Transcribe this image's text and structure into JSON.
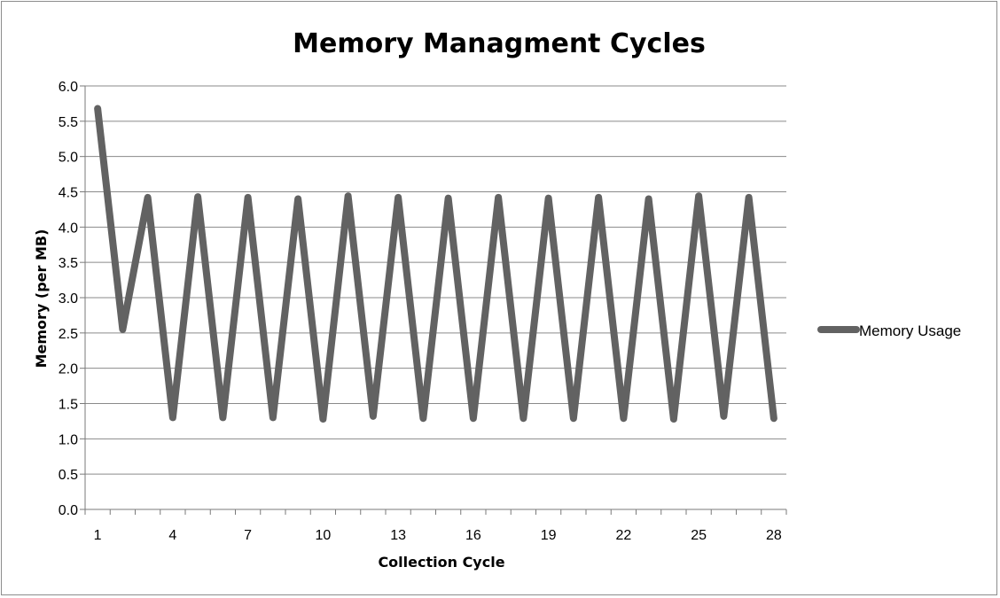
{
  "chart_data": {
    "type": "line",
    "title": "Memory Managment Cycles",
    "xlabel": "Collection Cycle",
    "ylabel": "Memory (per MB)",
    "ylim": [
      0,
      6
    ],
    "y_ticks": [
      "0.0",
      "0.5",
      "1.0",
      "1.5",
      "2.0",
      "2.5",
      "3.0",
      "3.5",
      "4.0",
      "4.5",
      "5.0",
      "5.5",
      "6.0"
    ],
    "x_ticks": [
      "1",
      "4",
      "7",
      "10",
      "13",
      "16",
      "19",
      "22",
      "25",
      "28"
    ],
    "x": [
      1,
      2,
      3,
      4,
      5,
      6,
      7,
      8,
      9,
      10,
      11,
      12,
      13,
      14,
      15,
      16,
      17,
      18,
      19,
      20,
      21,
      22,
      23,
      24,
      25,
      26,
      27,
      28
    ],
    "grid": true,
    "legend_position": "right",
    "line_color": "#626262",
    "series": [
      {
        "name": "Memory Usage",
        "values": [
          5.68,
          2.55,
          4.42,
          1.3,
          4.43,
          1.3,
          4.42,
          1.3,
          4.4,
          1.28,
          4.44,
          1.32,
          4.42,
          1.29,
          4.41,
          1.29,
          4.42,
          1.29,
          4.41,
          1.29,
          4.42,
          1.29,
          4.4,
          1.28,
          4.44,
          1.32,
          4.42,
          1.29
        ]
      }
    ]
  }
}
